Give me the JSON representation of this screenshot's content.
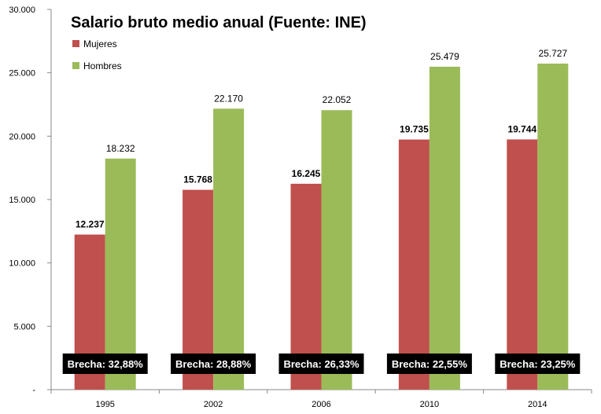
{
  "chart_data": {
    "type": "bar",
    "title": "Salario bruto medio anual (Fuente: INE)",
    "categories": [
      "1995",
      "2002",
      "2006",
      "2010",
      "2014"
    ],
    "series": [
      {
        "name": "Mujeres",
        "color": "#C0504D",
        "values": [
          12237,
          15768,
          16245,
          19735,
          19744
        ],
        "labels": [
          "12.237",
          "15.768",
          "16.245",
          "19.735",
          "19.744"
        ]
      },
      {
        "name": "Hombres",
        "color": "#9BBB59",
        "values": [
          18232,
          22170,
          22052,
          25479,
          25727
        ],
        "labels": [
          "18.232",
          "22.170",
          "22.052",
          "25.479",
          "25.727"
        ]
      }
    ],
    "annotations": [
      "Brecha: 32,88%",
      "Brecha: 28,88%",
      "Brecha: 26,33%",
      "Brecha: 22,55%",
      "Brecha: 23,25%"
    ],
    "ylim": [
      0,
      30000
    ],
    "yticks": [
      0,
      5000,
      10000,
      15000,
      20000,
      25000,
      30000
    ],
    "ytick_labels": [
      "-",
      "5.000",
      "10.000",
      "15.000",
      "20.000",
      "25.000",
      "30.000"
    ],
    "xlabel": "",
    "ylabel": "",
    "grid": false,
    "legend": "top-left"
  }
}
